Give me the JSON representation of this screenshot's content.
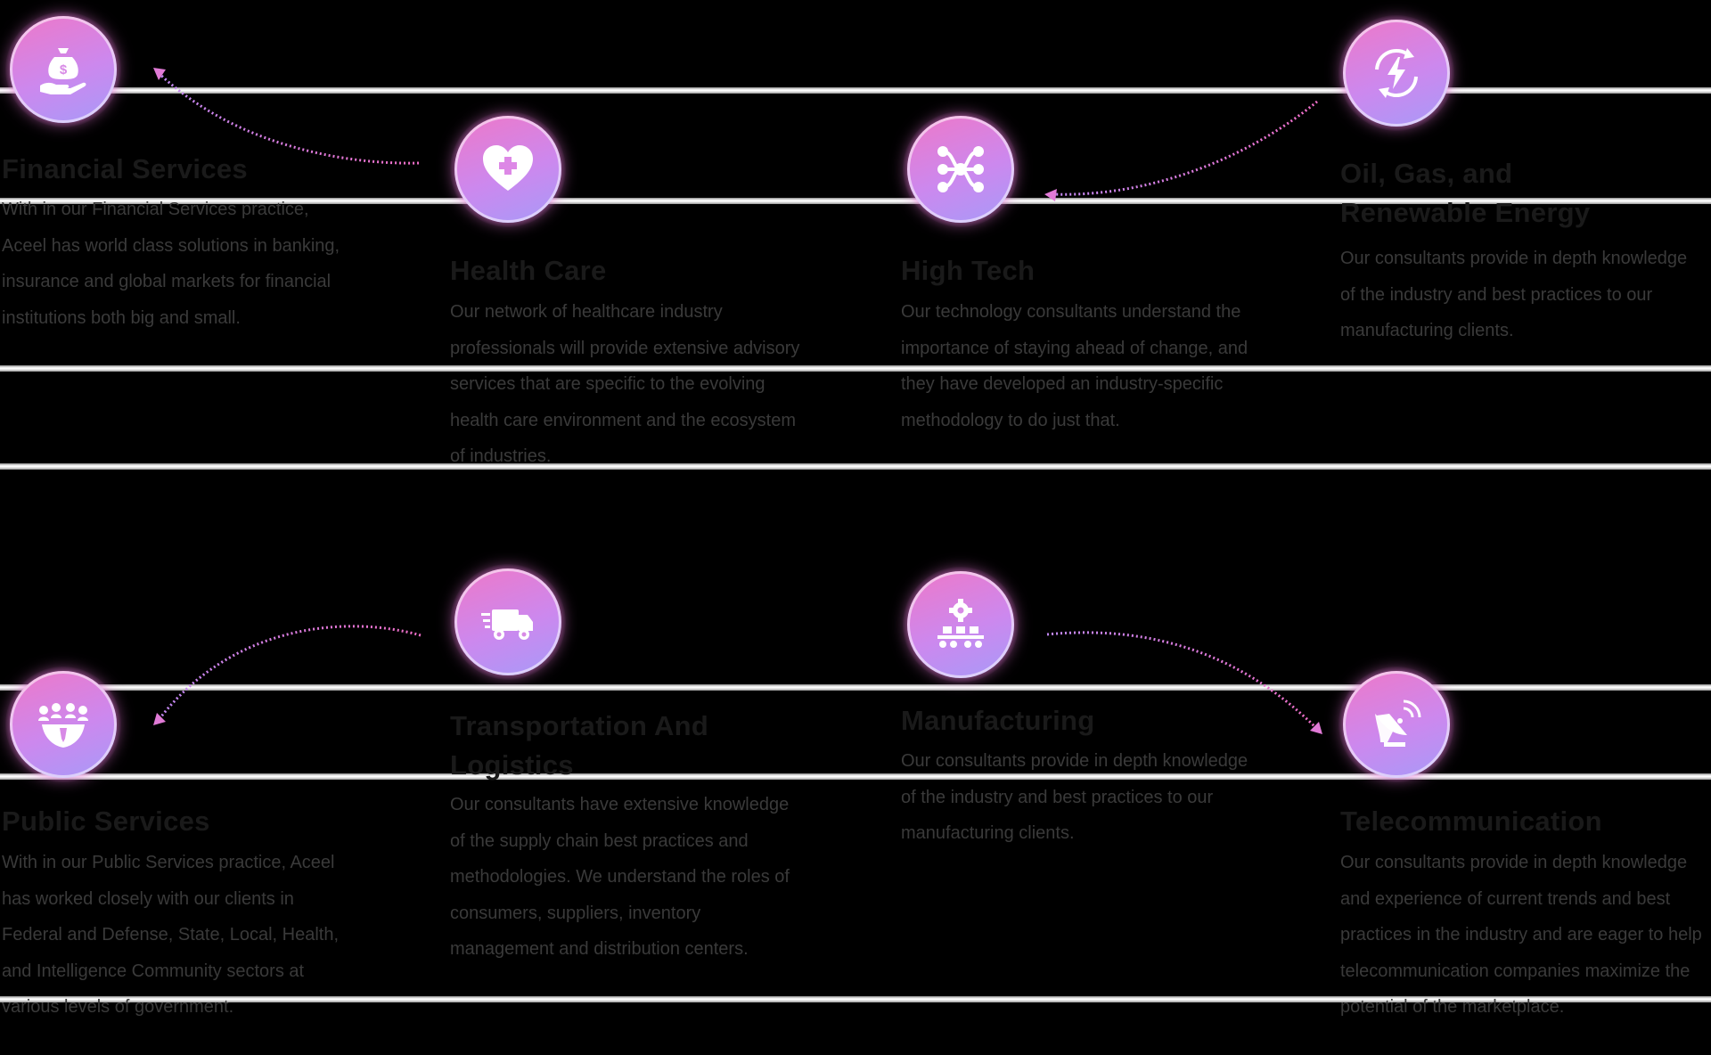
{
  "cards": [
    {
      "title": "Financial Services",
      "desc": "With in our Financial Services practice, Aceel has world class solutions in banking, insurance and global markets for financial institutions both big and small.",
      "icon": "money-bag-hand-icon"
    },
    {
      "title": "Health Care",
      "desc": "Our network of healthcare industry professionals will provide extensive advisory services that are specific to the evolving health care environment and the ecosystem of industries.",
      "icon": "heart-plus-icon"
    },
    {
      "title": "High Tech",
      "desc": "Our technology consultants understand the importance of staying ahead of change, and they have developed an industry-specific methodology to do just that.",
      "icon": "network-nodes-icon"
    },
    {
      "title": "Oil, Gas, and Renewable Energy",
      "desc": "Our consultants provide in depth knowledge of the industry and best practices to our manufacturing clients.",
      "icon": "energy-cycle-icon"
    },
    {
      "title": "Public Services",
      "desc": "With in our Public Services practice, Aceel has worked closely with our clients in Federal and Defense, State, Local, Health, and Intelligence Community sectors at various levels of government.",
      "icon": "people-group-icon"
    },
    {
      "title": "Transportation And Logistics",
      "desc": "Our consultants have extensive knowledge of the supply chain best practices and methodologies. We understand the roles of consumers, suppliers, inventory management and distribution centers.",
      "icon": "delivery-truck-icon"
    },
    {
      "title": "Manufacturing",
      "desc": "Our consultants provide in depth knowledge of the industry and best practices to our manufacturing clients.",
      "icon": "conveyor-gear-icon"
    },
    {
      "title": "Telecommunication",
      "desc": "Our consultants provide in depth knowledge and experience of current trends and best practices in the industry and are eager to help telecommunication companies maximize the potential of the marketplace.",
      "icon": "satellite-dish-icon"
    }
  ],
  "colors": {
    "accent_pink": "#ee78c8",
    "accent_violet": "#a79af8",
    "arrow": "#e070d8"
  }
}
